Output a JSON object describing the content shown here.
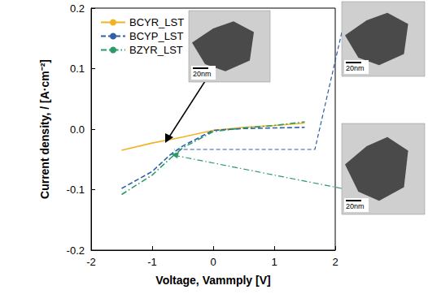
{
  "chart_data": {
    "type": "line",
    "x_label": "Voltage, Vammply [V]",
    "y_label": "Current density, / [A·cm⁻²]",
    "x": [
      -1.5,
      -1,
      -0.7,
      -0.5,
      0,
      0.5,
      1,
      1.5
    ],
    "series": [
      {
        "name": "BCYR_LST",
        "color": "#f0b323",
        "line_style": "solid",
        "values": [
          -0.035,
          -0.023,
          -0.017,
          -0.013,
          -0.002,
          0.003,
          0.006,
          0.01
        ]
      },
      {
        "name": "BCYP_LST",
        "color": "#2e5fa8",
        "line_style": "dashed",
        "values": [
          -0.098,
          -0.07,
          -0.042,
          -0.028,
          -0.002,
          0.001,
          0.002,
          0.003
        ]
      },
      {
        "name": "BZYR_LST",
        "color": "#2a9a6a",
        "line_style": "dashdot",
        "values": [
          -0.108,
          -0.076,
          -0.048,
          -0.031,
          -0.004,
          0.002,
          0.006,
          0.012
        ]
      }
    ],
    "xlim": [
      -2,
      2
    ],
    "xticks": [
      -2,
      -1,
      0,
      1,
      2
    ],
    "ylim": [
      -0.2,
      0.2
    ],
    "yticks": [
      -0.2,
      -0.1,
      {
        "value": 0,
        "label": "0.0"
      },
      0.1,
      0.2
    ],
    "grid": false,
    "legend": "upper left",
    "annotations": [
      "20nm",
      "20nm",
      "20nm"
    ]
  }
}
